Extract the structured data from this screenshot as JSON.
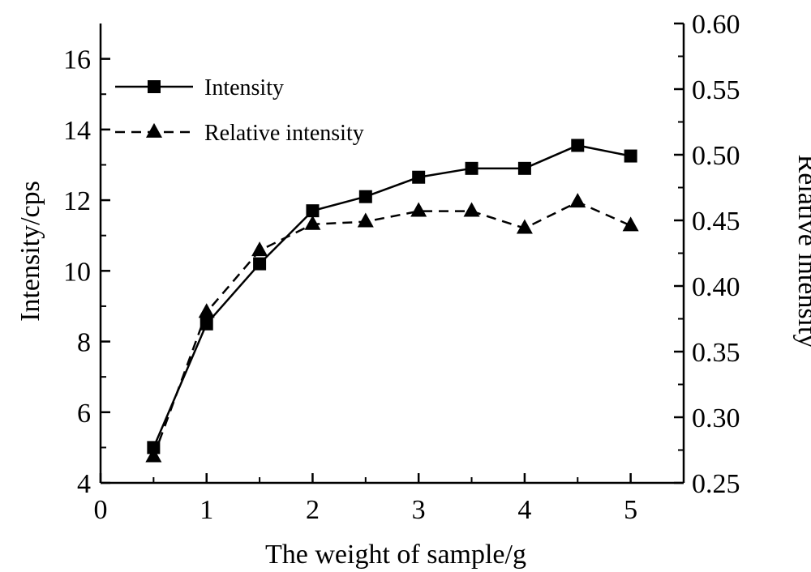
{
  "chart_data": {
    "type": "line",
    "xlabel": "The weight of sample/g",
    "ylabel": "Intensity/cps",
    "y2label": "Relative intensity",
    "xlim": [
      0,
      5.5
    ],
    "ylim": [
      4,
      17
    ],
    "y2lim": [
      0.25,
      0.6
    ],
    "xticks": [
      "0",
      "1",
      "2",
      "3",
      "4",
      "5"
    ],
    "yticks": [
      "4",
      "6",
      "8",
      "10",
      "12",
      "14",
      "16"
    ],
    "y2ticks": [
      "0.25",
      "0.30",
      "0.35",
      "0.40",
      "0.45",
      "0.50",
      "0.55",
      "0.60"
    ],
    "grid": false,
    "legend_position": "top-left",
    "series": [
      {
        "name": "Intensity",
        "axis": "left",
        "marker": "square",
        "line": "solid",
        "color": "#000000",
        "x": [
          0.5,
          1.0,
          1.5,
          2.0,
          2.5,
          3.0,
          3.5,
          4.0,
          4.5,
          5.0
        ],
        "y": [
          5.0,
          8.5,
          10.2,
          11.7,
          12.1,
          12.65,
          12.9,
          12.9,
          13.55,
          13.25
        ]
      },
      {
        "name": "Relative intensity",
        "axis": "right",
        "marker": "triangle",
        "line": "dashed",
        "color": "#000000",
        "x": [
          0.5,
          1.0,
          1.5,
          2.0,
          2.5,
          3.0,
          3.5,
          4.0,
          4.5,
          5.0
        ],
        "y": [
          0.27,
          0.38,
          0.427,
          0.447,
          0.449,
          0.457,
          0.457,
          0.444,
          0.464,
          0.446
        ]
      }
    ]
  }
}
